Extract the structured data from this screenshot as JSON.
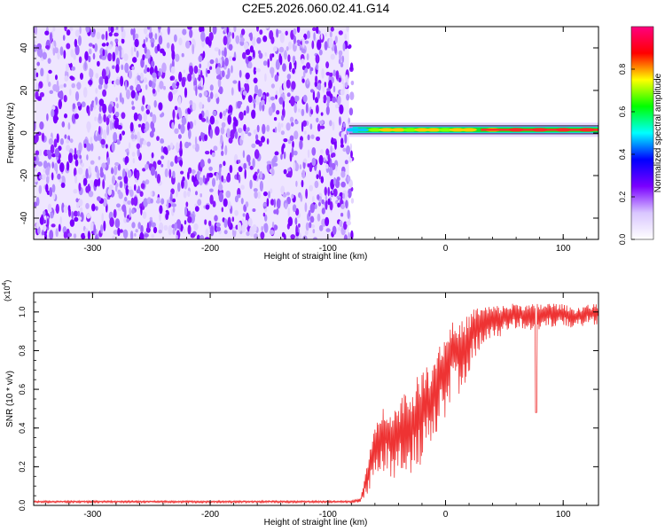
{
  "title": "C2E5.2026.060.02.41.G14",
  "chart_data": [
    {
      "type": "heatmap",
      "title": "C2E5.2026.060.02.41.G14",
      "xlabel": "Height of straight line (km)",
      "ylabel": "Frequency (Hz)",
      "xlim": [
        -350,
        130
      ],
      "ylim": [
        -50,
        50
      ],
      "x_ticks": [
        -300,
        -200,
        -100,
        0,
        100
      ],
      "x_tick_labels": [
        "-300",
        "-200",
        "-100",
        "0",
        "100"
      ],
      "y_ticks": [
        -40,
        -20,
        0,
        20,
        40
      ],
      "y_tick_labels": [
        "-40",
        "-20",
        "0",
        "20",
        "40"
      ],
      "noise_region_x": [
        -350,
        -82
      ],
      "signal_band": {
        "x_start": -82,
        "x_end": 130,
        "center_frequency_hz": 1.5,
        "points": [
          {
            "x": -80,
            "amp": 0.25
          },
          {
            "x": -75,
            "amp": 0.35
          },
          {
            "x": -70,
            "amp": 0.5
          },
          {
            "x": -60,
            "amp": 0.6
          },
          {
            "x": -50,
            "amp": 0.75
          },
          {
            "x": -40,
            "amp": 0.8
          },
          {
            "x": -30,
            "amp": 0.7
          },
          {
            "x": -20,
            "amp": 0.75
          },
          {
            "x": -10,
            "amp": 0.8
          },
          {
            "x": 0,
            "amp": 0.7
          },
          {
            "x": 10,
            "amp": 0.8
          },
          {
            "x": 20,
            "amp": 0.8
          },
          {
            "x": 40,
            "amp": 0.85
          },
          {
            "x": 60,
            "amp": 0.9
          },
          {
            "x": 80,
            "amp": 0.95
          },
          {
            "x": 100,
            "amp": 0.9
          },
          {
            "x": 120,
            "amp": 0.95
          }
        ]
      },
      "colorbar": {
        "label": "Normalized spectral amplitude",
        "range": [
          0,
          1
        ],
        "ticks": [
          0.0,
          0.2,
          0.4,
          0.6,
          0.8
        ],
        "tick_labels": [
          "0.0",
          "0.2",
          "0.4",
          "0.6",
          "0.8"
        ],
        "colors": [
          "#ffffff",
          "#d9c6ff",
          "#7a00ff",
          "#0000ff",
          "#00ffff",
          "#00ff00",
          "#ffff00",
          "#ff0000",
          "#ff0080"
        ]
      }
    },
    {
      "type": "line",
      "xlabel": "Height of straight line (km)",
      "ylabel": "SNR (10 * v/v)",
      "y_multiplier": "(x10",
      "y_multiplier_exp": "4",
      "y_multiplier_close": ")",
      "xlim": [
        -350,
        130
      ],
      "ylim": [
        0,
        1.1
      ],
      "x_ticks": [
        -300,
        -200,
        -100,
        0,
        100
      ],
      "x_tick_labels": [
        "-300",
        "-200",
        "-100",
        "0",
        "100"
      ],
      "y_ticks": [
        0.0,
        0.2,
        0.4,
        0.6,
        0.8,
        1.0
      ],
      "y_tick_labels": [
        "0.0",
        "0.2",
        "0.4",
        "0.6",
        "0.8",
        "1.0"
      ],
      "color": "#ee3333",
      "series": [
        {
          "name": "SNR",
          "x": [
            -350,
            -300,
            -250,
            -200,
            -150,
            -100,
            -80,
            -72,
            -65,
            -60,
            -55,
            -50,
            -45,
            -40,
            -35,
            -30,
            -25,
            -20,
            -15,
            -10,
            -5,
            0,
            5,
            10,
            15,
            20,
            25,
            30,
            40,
            50,
            60,
            70,
            80,
            90,
            100,
            110,
            120,
            130
          ],
          "y": [
            0.02,
            0.02,
            0.02,
            0.02,
            0.02,
            0.02,
            0.02,
            0.03,
            0.2,
            0.3,
            0.38,
            0.4,
            0.36,
            0.38,
            0.45,
            0.42,
            0.48,
            0.52,
            0.55,
            0.6,
            0.7,
            0.72,
            0.82,
            0.8,
            0.83,
            0.88,
            0.93,
            0.95,
            0.97,
            0.98,
            1.0,
            0.99,
            0.99,
            1.0,
            1.0,
            0.98,
            1.0,
            1.0
          ],
          "spike_amplitude": [
            0.005,
            0.005,
            0.005,
            0.005,
            0.005,
            0.005,
            0.005,
            0.01,
            0.1,
            0.12,
            0.15,
            0.16,
            0.18,
            0.18,
            0.2,
            0.2,
            0.22,
            0.22,
            0.22,
            0.22,
            0.2,
            0.2,
            0.18,
            0.17,
            0.16,
            0.14,
            0.12,
            0.1,
            0.08,
            0.07,
            0.06,
            0.06,
            0.07,
            0.06,
            0.05,
            0.05,
            0.05,
            0.05
          ]
        }
      ],
      "notable_dip": {
        "x": 77,
        "y": 0.48
      }
    }
  ]
}
